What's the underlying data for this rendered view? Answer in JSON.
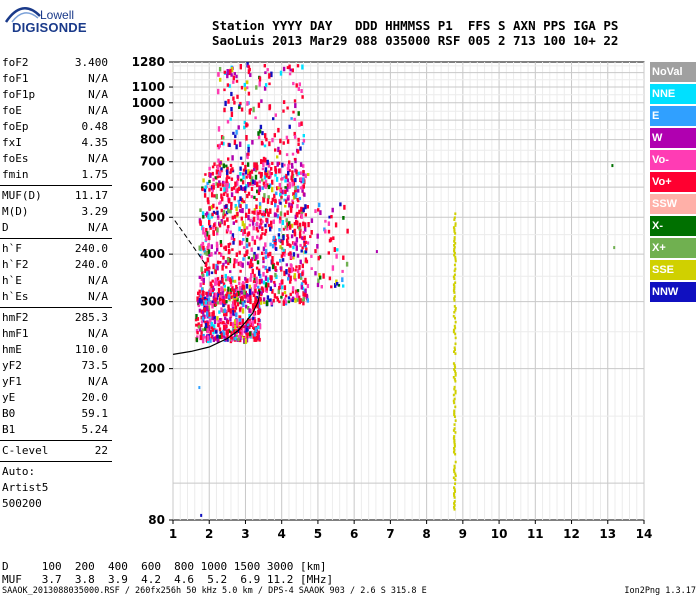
{
  "logo": {
    "line1": "Lowell",
    "line2": "DIGISONDE"
  },
  "header": {
    "labels": "Station YYYY DAY   DDD HHMMSS P1  FFS S AXN PPS IGA PS",
    "values": "SaoLuis 2013 Mar29 088 035000 RSF 005 2 713 100 10+ 22"
  },
  "params": {
    "group1": [
      {
        "label": "foF2",
        "value": "3.400"
      },
      {
        "label": "foF1",
        "value": "N/A"
      },
      {
        "label": "foF1p",
        "value": "N/A"
      },
      {
        "label": "foE",
        "value": "N/A"
      },
      {
        "label": "foEp",
        "value": "0.48"
      },
      {
        "label": "fxI",
        "value": "4.35"
      },
      {
        "label": "foEs",
        "value": "N/A"
      },
      {
        "label": "fmin",
        "value": "1.75"
      }
    ],
    "group2": [
      {
        "label": "MUF(D)",
        "value": "11.17"
      },
      {
        "label": "M(D)",
        "value": "3.29"
      },
      {
        "label": "D",
        "value": "N/A"
      }
    ],
    "group3": [
      {
        "label": "h`F",
        "value": "240.0"
      },
      {
        "label": "h`F2",
        "value": "240.0"
      },
      {
        "label": "h`E",
        "value": "N/A"
      },
      {
        "label": "h`Es",
        "value": "N/A"
      }
    ],
    "group4": [
      {
        "label": "hmF2",
        "value": "285.3"
      },
      {
        "label": "hmF1",
        "value": "N/A"
      },
      {
        "label": "hmE",
        "value": "110.0"
      },
      {
        "label": "yF2",
        "value": "73.5"
      },
      {
        "label": "yF1",
        "value": "N/A"
      },
      {
        "label": "yE",
        "value": "20.0"
      },
      {
        "label": "B0",
        "value": "59.1"
      },
      {
        "label": "B1",
        "value": "5.24"
      }
    ],
    "clevel": {
      "label": "C-level",
      "value": "22"
    },
    "auto_lines": [
      "Auto:",
      "Artist5",
      "500200"
    ]
  },
  "legend": [
    {
      "label": "NoVal",
      "color": "#a0a0a0"
    },
    {
      "label": "NNE",
      "color": "#00e0ff"
    },
    {
      "label": "E",
      "color": "#30a0ff"
    },
    {
      "label": "W",
      "color": "#b000b0"
    },
    {
      "label": "Vo-",
      "color": "#ff3cb4"
    },
    {
      "label": "Vo+",
      "color": "#ff0030"
    },
    {
      "label": "SSW",
      "color": "#ffb0a8"
    },
    {
      "label": "X-",
      "color": "#007000"
    },
    {
      "label": "X+",
      "color": "#70b050"
    },
    {
      "label": "SSE",
      "color": "#d0d000"
    },
    {
      "label": "NNW",
      "color": "#1010c0"
    }
  ],
  "muf_table": {
    "line1": "D     100  200  400  600  800 1000 1500 3000 [km]",
    "line2": "MUF   3.7  3.8  3.9  4.2  4.6  5.2  6.9 11.2 [MHz]"
  },
  "footer": {
    "left": "SAAOK_2013088035000.RSF / 260fx256h 50 kHz 5.0 km / DPS-4 SAAOK 903 / 2.6 S 315.8 E",
    "right": "Ion2Png 1.3.17"
  },
  "chart_data": {
    "type": "scatter",
    "xlabel": "",
    "ylabel": "",
    "xlim": [
      1,
      14
    ],
    "ylim_log": [
      80,
      1280
    ],
    "x_ticks": [
      1,
      2,
      3,
      4,
      5,
      6,
      7,
      8,
      9,
      10,
      11,
      12,
      13,
      14
    ],
    "y_ticks": [
      80,
      200,
      300,
      400,
      500,
      600,
      700,
      800,
      900,
      1000,
      1100,
      1280
    ],
    "grid": true,
    "trace": {
      "description_free": true,
      "x": [
        1.0,
        1.5,
        2.0,
        2.5,
        2.8,
        3.0,
        3.2,
        3.35,
        3.4
      ],
      "y": [
        218,
        222,
        228,
        240,
        252,
        265,
        280,
        300,
        320
      ]
    },
    "trace_dashed": {
      "x": [
        1.05,
        1.4,
        1.7,
        1.9
      ],
      "y": [
        490,
        440,
        400,
        375
      ]
    },
    "clusters": [
      {
        "xmin": 1.6,
        "xmax": 3.4,
        "ymin": 240,
        "ymax": 330,
        "count": 420
      },
      {
        "xmin": 1.7,
        "xmax": 4.7,
        "ymin": 300,
        "ymax": 700,
        "count": 900
      },
      {
        "xmin": 2.2,
        "xmax": 4.6,
        "ymin": 600,
        "ymax": 1280,
        "count": 260
      },
      {
        "xmin": 4.6,
        "xmax": 5.8,
        "ymin": 330,
        "ymax": 550,
        "count": 60
      }
    ],
    "sparse_points": [
      {
        "x": 1.7,
        "y": 180,
        "color": "#30a0ff"
      },
      {
        "x": 1.75,
        "y": 83,
        "color": "#1010c0"
      },
      {
        "x": 6.6,
        "y": 410,
        "color": "#b000b0"
      },
      {
        "x": 13.15,
        "y": 420,
        "color": "#70b050"
      },
      {
        "x": 13.1,
        "y": 690,
        "color": "#007000"
      }
    ],
    "vertical_band": {
      "x": 8.75,
      "ymin": 85,
      "ymax": 515,
      "color": "#d0d000"
    }
  }
}
